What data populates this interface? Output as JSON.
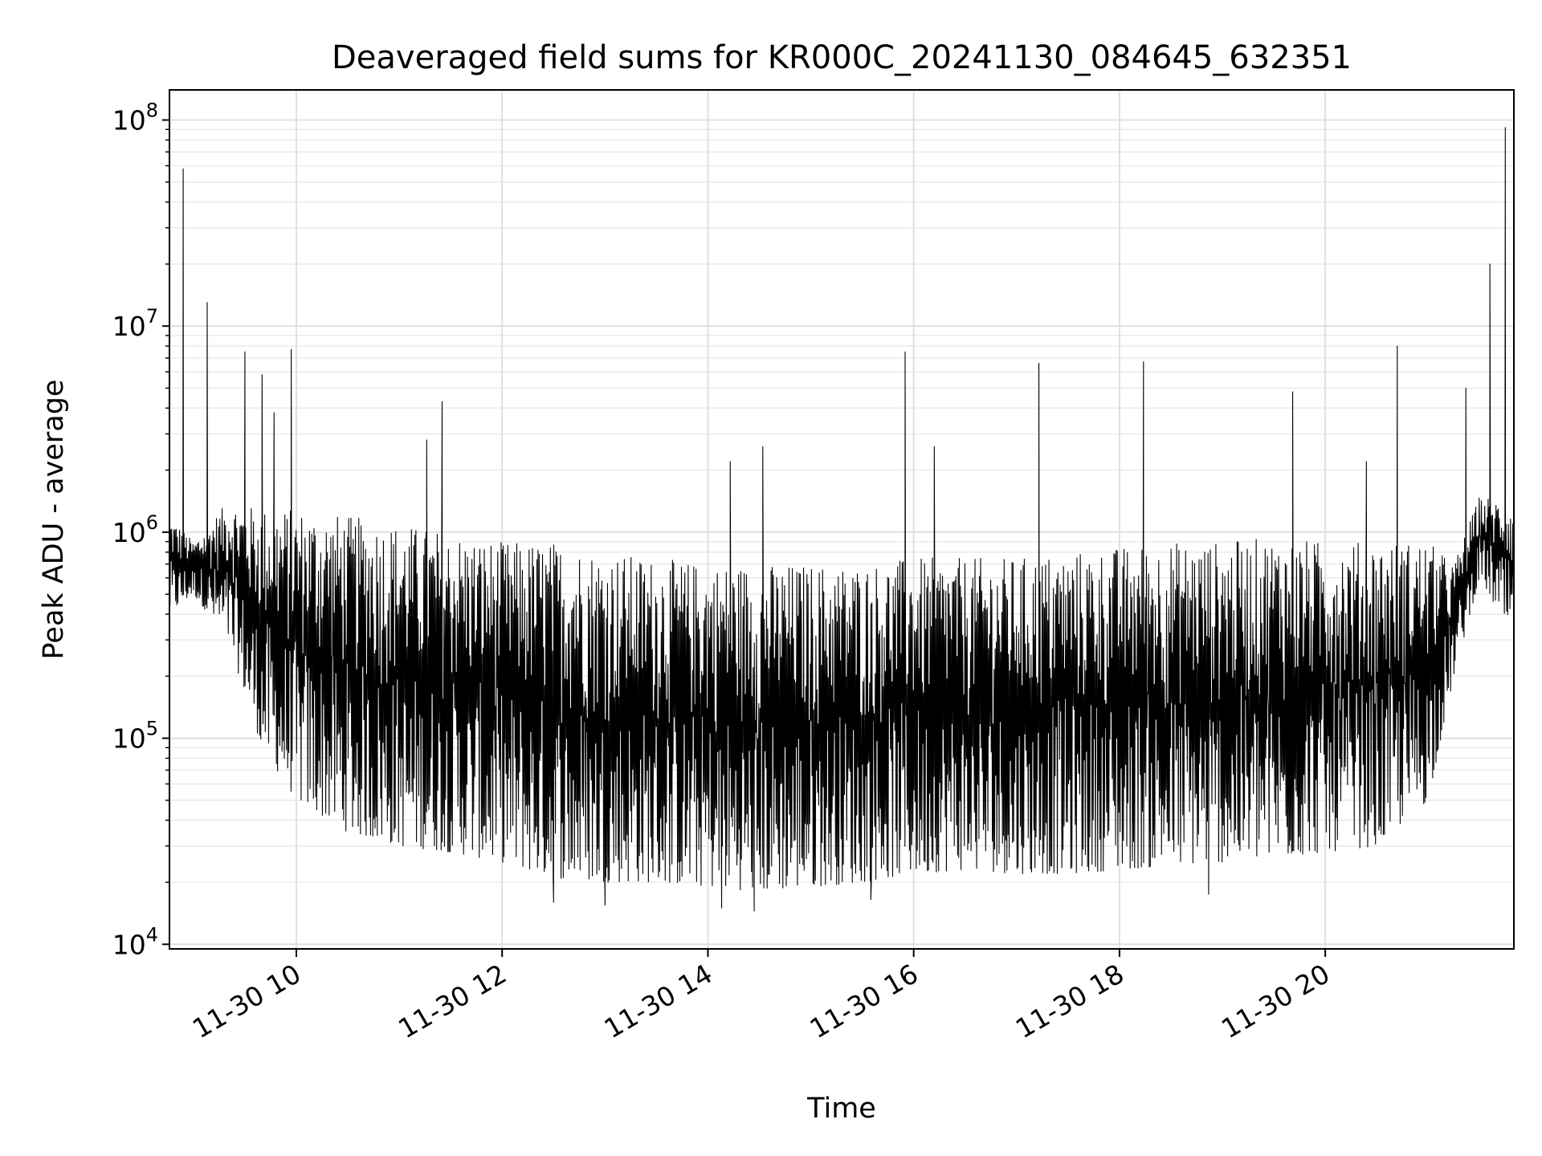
{
  "chart_data": {
    "type": "line",
    "title": "Deaveraged field sums for KR000C_20241130_084645_632351",
    "xlabel": "Time",
    "ylabel": "Peak ADU - average",
    "yscale": "log",
    "ylim": [
      9500,
      140000000
    ],
    "xlim": [
      "2024-11-30 08:46",
      "2024-11-30 21:50"
    ],
    "grid": true,
    "line_color": "#000000",
    "x_ticks": [
      {
        "value": "2024-11-30 10:00",
        "label": "11-30 10"
      },
      {
        "value": "2024-11-30 12:00",
        "label": "11-30 12"
      },
      {
        "value": "2024-11-30 14:00",
        "label": "11-30 14"
      },
      {
        "value": "2024-11-30 16:00",
        "label": "11-30 16"
      },
      {
        "value": "2024-11-30 18:00",
        "label": "11-30 18"
      },
      {
        "value": "2024-11-30 20:00",
        "label": "11-30 20"
      }
    ],
    "y_ticks": [
      {
        "value": 10000,
        "base": "10",
        "exp": "4"
      },
      {
        "value": 100000,
        "base": "10",
        "exp": "5"
      },
      {
        "value": 1000000,
        "base": "10",
        "exp": "6"
      },
      {
        "value": 10000000,
        "base": "10",
        "exp": "7"
      },
      {
        "value": 100000000,
        "base": "10",
        "exp": "8"
      }
    ],
    "series": [
      {
        "envelope": [
          {
            "x": "2024-11-30 08:46",
            "low": 400000,
            "high": 1200000
          },
          {
            "x": "2024-11-30 09:00",
            "low": 500000,
            "high": 900000
          },
          {
            "x": "2024-11-30 09:20",
            "low": 300000,
            "high": 1400000
          },
          {
            "x": "2024-11-30 09:40",
            "low": 90000,
            "high": 1300000
          },
          {
            "x": "2024-11-30 10:00",
            "low": 50000,
            "high": 1300000
          },
          {
            "x": "2024-11-30 10:30",
            "low": 35000,
            "high": 1200000
          },
          {
            "x": "2024-11-30 11:00",
            "low": 30000,
            "high": 1100000
          },
          {
            "x": "2024-11-30 11:30",
            "low": 28000,
            "high": 1000000
          },
          {
            "x": "2024-11-30 12:00",
            "low": 25000,
            "high": 900000
          },
          {
            "x": "2024-11-30 12:30",
            "low": 21000,
            "high": 900000
          },
          {
            "x": "2024-11-30 13:00",
            "low": 20000,
            "high": 800000
          },
          {
            "x": "2024-11-30 13:30",
            "low": 20000,
            "high": 750000
          },
          {
            "x": "2024-11-30 14:00",
            "low": 19000,
            "high": 700000
          },
          {
            "x": "2024-11-30 14:30",
            "low": 18000,
            "high": 700000
          },
          {
            "x": "2024-11-30 15:00",
            "low": 19000,
            "high": 700000
          },
          {
            "x": "2024-11-30 15:30",
            "low": 20000,
            "high": 700000
          },
          {
            "x": "2024-11-30 16:00",
            "low": 22000,
            "high": 750000
          },
          {
            "x": "2024-11-30 16:30",
            "low": 23000,
            "high": 750000
          },
          {
            "x": "2024-11-30 17:00",
            "low": 22000,
            "high": 750000
          },
          {
            "x": "2024-11-30 17:30",
            "low": 22000,
            "high": 800000
          },
          {
            "x": "2024-11-30 18:00",
            "low": 23000,
            "high": 850000
          },
          {
            "x": "2024-11-30 18:30",
            "low": 24000,
            "high": 900000
          },
          {
            "x": "2024-11-30 19:00",
            "low": 25000,
            "high": 900000
          },
          {
            "x": "2024-11-30 19:30",
            "low": 26000,
            "high": 950000
          },
          {
            "x": "2024-11-30 20:00",
            "low": 28000,
            "high": 900000
          },
          {
            "x": "2024-11-30 20:30",
            "low": 30000,
            "high": 900000
          },
          {
            "x": "2024-11-30 21:00",
            "low": 50000,
            "high": 900000
          },
          {
            "x": "2024-11-30 21:15",
            "low": 200000,
            "high": 700000
          },
          {
            "x": "2024-11-30 21:30",
            "low": 600000,
            "high": 1500000
          },
          {
            "x": "2024-11-30 21:50",
            "low": 300000,
            "high": 1400000
          }
        ],
        "spikes": [
          {
            "x": "2024-11-30 08:54",
            "y": 58000000
          },
          {
            "x": "2024-11-30 09:08",
            "y": 13000000
          },
          {
            "x": "2024-11-30 09:30",
            "y": 7500000
          },
          {
            "x": "2024-11-30 09:40",
            "y": 5800000
          },
          {
            "x": "2024-11-30 09:47",
            "y": 3800000
          },
          {
            "x": "2024-11-30 09:57",
            "y": 7700000
          },
          {
            "x": "2024-11-30 11:25",
            "y": 4300000
          },
          {
            "x": "2024-11-30 11:16",
            "y": 2800000
          },
          {
            "x": "2024-11-30 14:13",
            "y": 2200000
          },
          {
            "x": "2024-11-30 14:32",
            "y": 2600000
          },
          {
            "x": "2024-11-30 15:55",
            "y": 7500000
          },
          {
            "x": "2024-11-30 16:12",
            "y": 2600000
          },
          {
            "x": "2024-11-30 17:13",
            "y": 6600000
          },
          {
            "x": "2024-11-30 18:14",
            "y": 6700000
          },
          {
            "x": "2024-11-30 19:41",
            "y": 4800000
          },
          {
            "x": "2024-11-30 20:24",
            "y": 2200000
          },
          {
            "x": "2024-11-30 20:42",
            "y": 8000000
          },
          {
            "x": "2024-11-30 21:22",
            "y": 5000000
          },
          {
            "x": "2024-11-30 21:36",
            "y": 20000000
          },
          {
            "x": "2024-11-30 21:45",
            "y": 92000000
          }
        ],
        "dips": [
          {
            "x": "2024-11-30 12:30",
            "y": 16000
          },
          {
            "x": "2024-11-30 13:00",
            "y": 15500
          },
          {
            "x": "2024-11-30 14:08",
            "y": 15000
          },
          {
            "x": "2024-11-30 14:27",
            "y": 14500
          },
          {
            "x": "2024-11-30 15:35",
            "y": 16500
          },
          {
            "x": "2024-11-30 18:52",
            "y": 17500
          }
        ]
      }
    ]
  }
}
